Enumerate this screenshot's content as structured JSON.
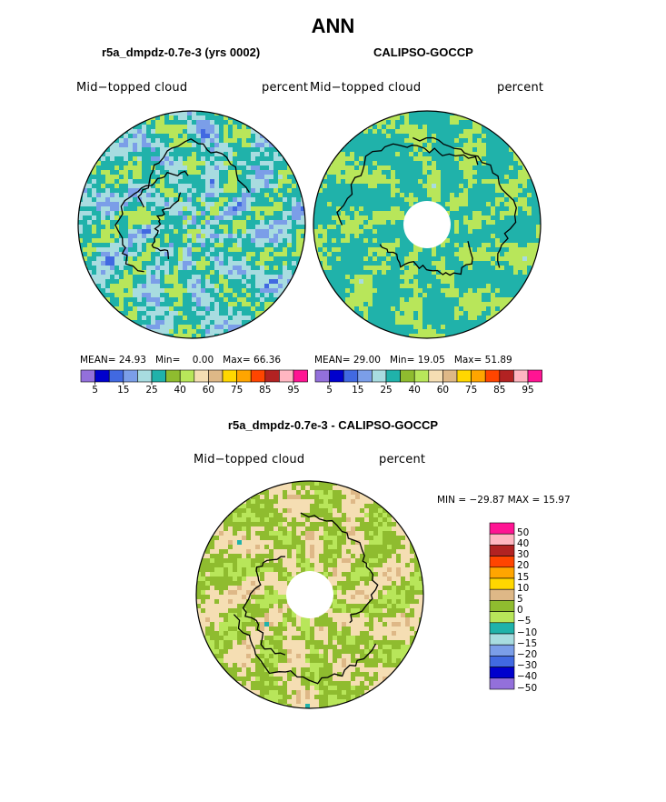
{
  "title": "ANN",
  "palette": [
    "#9370db",
    "#0000cd",
    "#4169e1",
    "#7b9ee8",
    "#a8dce0",
    "#20b2aa",
    "#8fbc2f",
    "#b8e65a",
    "#f5deb3",
    "#deb887",
    "#ffd700",
    "#ffa500",
    "#ff4500",
    "#b22222",
    "#ffb6c1",
    "#ff1493"
  ],
  "panels": [
    {
      "subtitle": "r5a_dmpdz-0.7e-3 (yrs 0002)",
      "variable": "Mid−topped cloud",
      "units": "percent",
      "stats": {
        "mean_label": "MEAN=",
        "mean": "24.93",
        "min_label": "Min=",
        "min": "0.00",
        "max_label": "Max=",
        "max": "66.36"
      },
      "colorbar_ticks": [
        "5",
        "15",
        "25",
        "40",
        "60",
        "75",
        "85",
        "95"
      ]
    },
    {
      "subtitle": "CALIPSO-GOCCP",
      "variable": "Mid−topped cloud",
      "units": "percent",
      "stats": {
        "mean_label": "MEAN=",
        "mean": "29.00",
        "min_label": "Min=",
        "min": "19.05",
        "max_label": "Max=",
        "max": "51.89"
      },
      "colorbar_ticks": [
        "5",
        "15",
        "25",
        "40",
        "60",
        "75",
        "85",
        "95"
      ]
    }
  ],
  "diff": {
    "subtitle": "r5a_dmpdz-0.7e-3 - CALIPSO-GOCCP",
    "variable": "Mid−topped cloud",
    "units": "percent",
    "minmax_text": "MIN = −29.87 MAX =  15.97",
    "colorbar_labels": [
      "50",
      "40",
      "30",
      "20",
      "15",
      "10",
      "5",
      "0",
      "−5",
      "−10",
      "−15",
      "−20",
      "−30",
      "−40",
      "−50"
    ]
  },
  "chart_data": [
    {
      "type": "heatmap",
      "projection": "north-polar-stereographic",
      "title": "r5a_dmpdz-0.7e-3 (yrs 0002)",
      "variable": "Mid-topped cloud",
      "units": "percent",
      "mean": 24.93,
      "min": 0.0,
      "max": 66.36,
      "contour_levels": [
        5,
        10,
        15,
        20,
        25,
        30,
        35,
        40,
        50,
        60,
        65,
        75,
        80,
        85,
        90,
        95
      ]
    },
    {
      "type": "heatmap",
      "projection": "north-polar-stereographic",
      "title": "CALIPSO-GOCCP",
      "variable": "Mid-topped cloud",
      "units": "percent",
      "mean": 29.0,
      "min": 19.05,
      "max": 51.89,
      "contour_levels": [
        5,
        10,
        15,
        20,
        25,
        30,
        35,
        40,
        50,
        60,
        65,
        75,
        80,
        85,
        90,
        95
      ],
      "missing_pole_hole": true
    },
    {
      "type": "heatmap",
      "projection": "north-polar-stereographic",
      "title": "r5a_dmpdz-0.7e-3 - CALIPSO-GOCCP",
      "variable": "Mid-topped cloud",
      "units": "percent",
      "min": -29.87,
      "max": 15.97,
      "contour_levels": [
        -50,
        -40,
        -30,
        -20,
        -15,
        -10,
        -5,
        0,
        5,
        10,
        15,
        20,
        30,
        40,
        50
      ],
      "missing_pole_hole": true
    }
  ]
}
